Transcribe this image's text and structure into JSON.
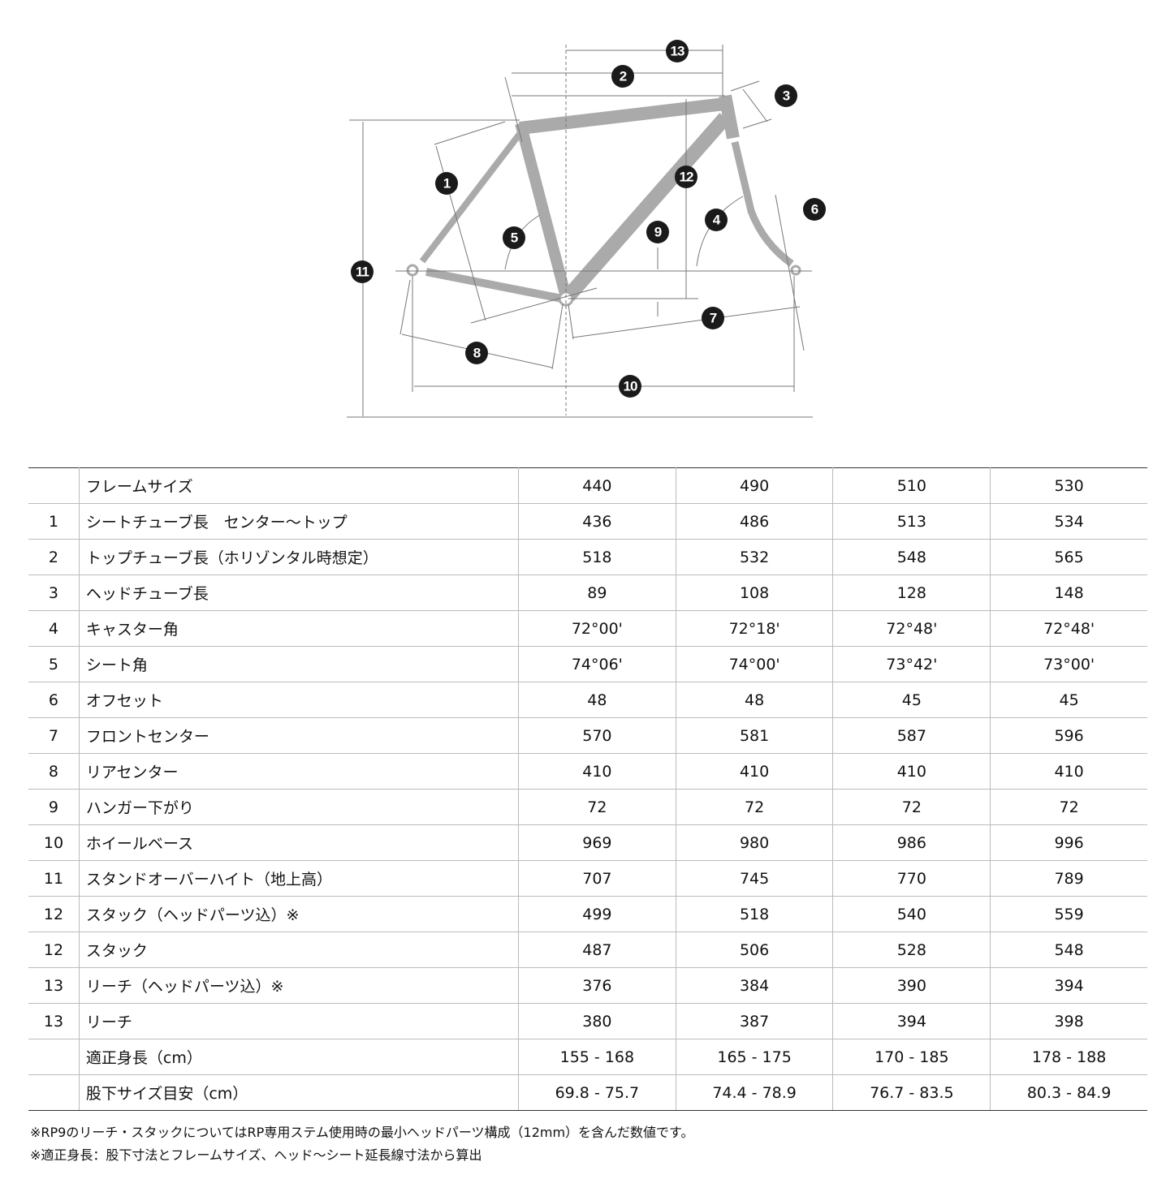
{
  "diagram": {
    "badges": [
      "1",
      "2",
      "3",
      "4",
      "5",
      "6",
      "7",
      "8",
      "9",
      "10",
      "11",
      "12",
      "13"
    ],
    "frame_color": "#aaaaaa",
    "badge_color": "#1a1a1a"
  },
  "table": {
    "header": {
      "num": "",
      "label": "フレームサイズ",
      "values": [
        "440",
        "490",
        "510",
        "530"
      ]
    },
    "rows": [
      {
        "num": "1",
        "label": "シートチューブ長　センター～トップ",
        "values": [
          "436",
          "486",
          "513",
          "534"
        ]
      },
      {
        "num": "2",
        "label": "トップチューブ長（ホリゾンタル時想定）",
        "values": [
          "518",
          "532",
          "548",
          "565"
        ]
      },
      {
        "num": "3",
        "label": "ヘッドチューブ長",
        "values": [
          "89",
          "108",
          "128",
          "148"
        ]
      },
      {
        "num": "4",
        "label": "キャスター角",
        "values": [
          "72°00'",
          "72°18'",
          "72°48'",
          "72°48'"
        ]
      },
      {
        "num": "5",
        "label": "シート角",
        "values": [
          "74°06'",
          "74°00'",
          "73°42'",
          "73°00'"
        ]
      },
      {
        "num": "6",
        "label": "オフセット",
        "values": [
          "48",
          "48",
          "45",
          "45"
        ]
      },
      {
        "num": "7",
        "label": "フロントセンター",
        "values": [
          "570",
          "581",
          "587",
          "596"
        ]
      },
      {
        "num": "8",
        "label": "リアセンター",
        "values": [
          "410",
          "410",
          "410",
          "410"
        ]
      },
      {
        "num": "9",
        "label": "ハンガー下がり",
        "values": [
          "72",
          "72",
          "72",
          "72"
        ]
      },
      {
        "num": "10",
        "label": "ホイールベース",
        "values": [
          "969",
          "980",
          "986",
          "996"
        ]
      },
      {
        "num": "11",
        "label": "スタンドオーバーハイト（地上高）",
        "values": [
          "707",
          "745",
          "770",
          "789"
        ]
      },
      {
        "num": "12",
        "label": "スタック（ヘッドパーツ込）※",
        "values": [
          "499",
          "518",
          "540",
          "559"
        ]
      },
      {
        "num": "12",
        "label": "スタック",
        "values": [
          "487",
          "506",
          "528",
          "548"
        ]
      },
      {
        "num": "13",
        "label": "リーチ（ヘッドパーツ込）※",
        "values": [
          "376",
          "384",
          "390",
          "394"
        ]
      },
      {
        "num": "13",
        "label": "リーチ",
        "values": [
          "380",
          "387",
          "394",
          "398"
        ]
      },
      {
        "num": "",
        "label": "適正身長（cm）",
        "values": [
          "155 - 168",
          "165 - 175",
          "170 - 185",
          "178 - 188"
        ]
      },
      {
        "num": "",
        "label": "股下サイズ目安（cm）",
        "values": [
          "69.8 - 75.7",
          "74.4 - 78.9",
          "76.7 - 83.5",
          "80.3 - 84.9"
        ]
      }
    ]
  },
  "notes": [
    "※RP9のリーチ・スタックについてはRP専用ステム使用時の最小ヘッドパーツ構成（12mm）を含んだ数値です。",
    "※適正身長：股下寸法とフレームサイズ、ヘッド～シート延長線寸法から算出"
  ]
}
